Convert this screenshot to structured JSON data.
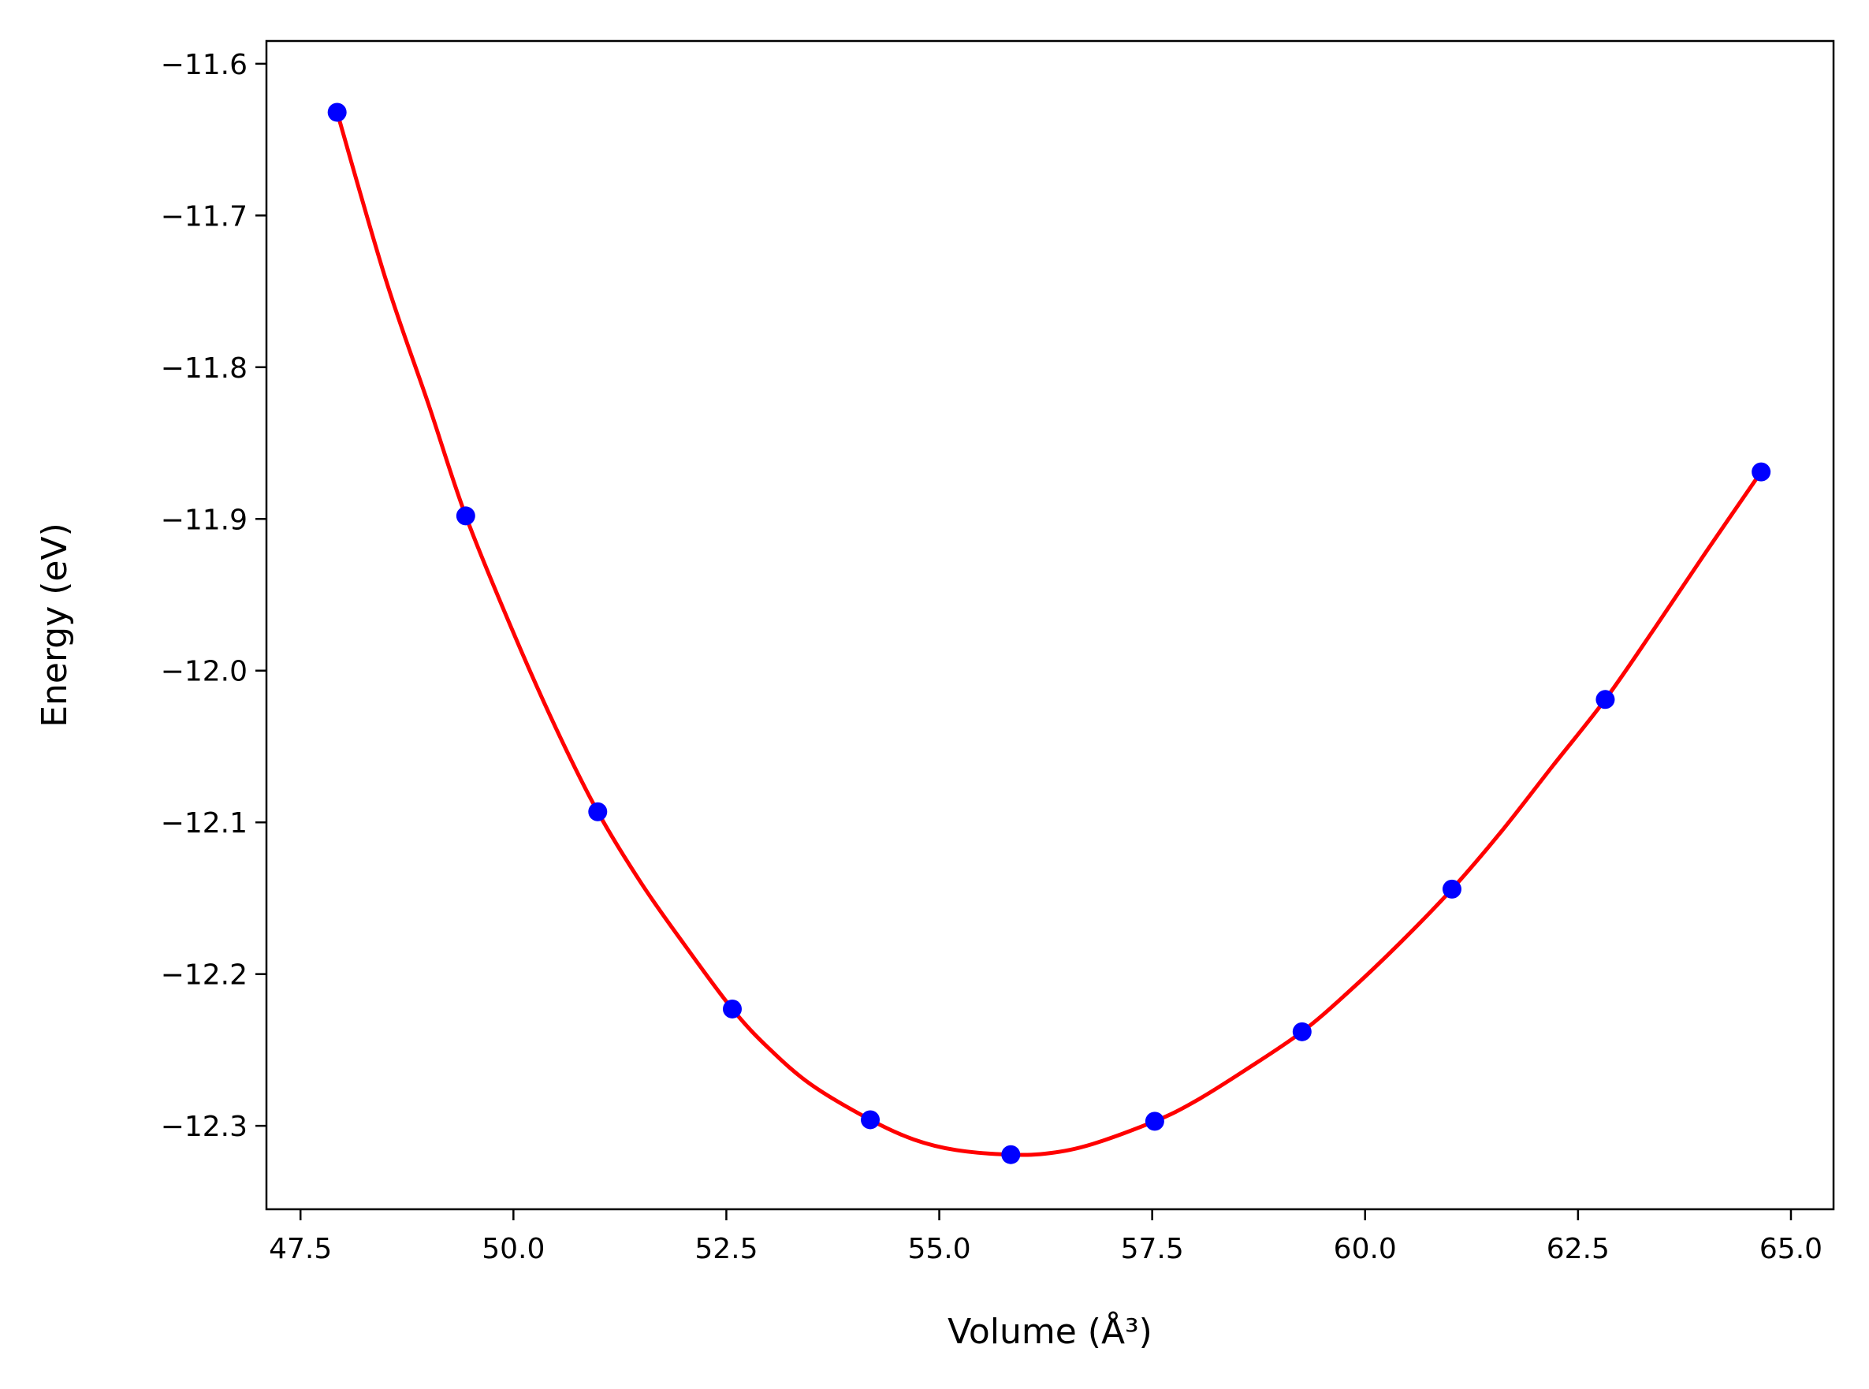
{
  "chart_data": {
    "type": "scatter",
    "title": "",
    "xlabel": "Volume (Å³)",
    "ylabel": "Energy (eV)",
    "xlim": [
      47.1,
      65.5
    ],
    "ylim": [
      -12.355,
      -11.585
    ],
    "grid": false,
    "legend": "none",
    "x_ticks": [
      47.5,
      50.0,
      52.5,
      55.0,
      57.5,
      60.0,
      62.5,
      65.0
    ],
    "x_tick_labels": [
      "47.5",
      "50.0",
      "52.5",
      "55.0",
      "57.5",
      "60.0",
      "62.5",
      "65.0"
    ],
    "y_ticks": [
      -11.6,
      -11.7,
      -11.8,
      -11.9,
      -12.0,
      -12.1,
      -12.2,
      -12.3
    ],
    "y_tick_labels": [
      "−11.6",
      "−11.7",
      "−11.8",
      "−11.9",
      "−12.0",
      "−12.1",
      "−12.2",
      "−12.3"
    ],
    "series": [
      {
        "kind": "points",
        "color": "#0000ff",
        "x": [
          47.93,
          49.44,
          50.99,
          52.57,
          54.19,
          55.84,
          57.53,
          59.26,
          61.02,
          62.82,
          64.65
        ],
        "y": [
          -11.632,
          -11.898,
          -12.093,
          -12.223,
          -12.296,
          -12.319,
          -12.297,
          -12.238,
          -12.144,
          -12.019,
          -11.869
        ]
      },
      {
        "kind": "fit-curve",
        "color": "#ff0000",
        "x": [
          47.93,
          48.5,
          49.0,
          49.44,
          50.0,
          50.5,
          50.99,
          51.5,
          52.0,
          52.57,
          53.0,
          53.5,
          54.19,
          54.7,
          55.2,
          55.84,
          56.3,
          56.8,
          57.53,
          58.0,
          58.6,
          59.26,
          59.8,
          60.4,
          61.02,
          61.6,
          62.2,
          62.82,
          63.4,
          64.0,
          64.65
        ],
        "y": [
          -11.632,
          -11.742,
          -11.824,
          -11.898,
          -11.975,
          -12.038,
          -12.093,
          -12.14,
          -12.18,
          -12.223,
          -12.249,
          -12.273,
          -12.296,
          -12.309,
          -12.316,
          -12.319,
          -12.318,
          -12.312,
          -12.297,
          -12.284,
          -12.263,
          -12.238,
          -12.212,
          -12.18,
          -12.144,
          -12.106,
          -12.063,
          -12.019,
          -11.972,
          -11.922,
          -11.869
        ]
      }
    ]
  }
}
